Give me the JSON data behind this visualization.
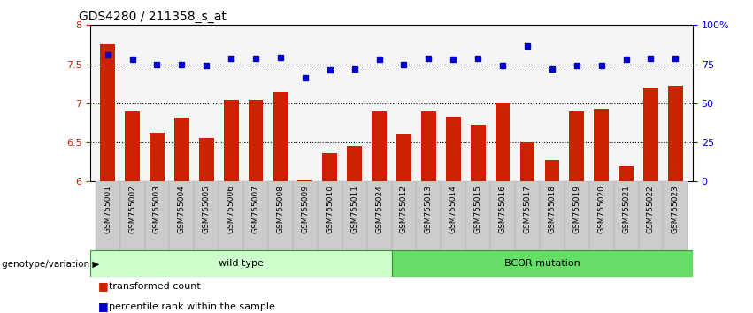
{
  "title": "GDS4280 / 211358_s_at",
  "categories": [
    "GSM755001",
    "GSM755002",
    "GSM755003",
    "GSM755004",
    "GSM755005",
    "GSM755006",
    "GSM755007",
    "GSM755008",
    "GSM755009",
    "GSM755010",
    "GSM755011",
    "GSM755024",
    "GSM755012",
    "GSM755013",
    "GSM755014",
    "GSM755015",
    "GSM755016",
    "GSM755017",
    "GSM755018",
    "GSM755019",
    "GSM755020",
    "GSM755021",
    "GSM755022",
    "GSM755023"
  ],
  "bar_values": [
    7.75,
    6.9,
    6.62,
    6.82,
    6.56,
    7.04,
    7.04,
    7.14,
    6.02,
    6.36,
    6.45,
    6.9,
    6.6,
    6.9,
    6.83,
    6.73,
    7.01,
    6.5,
    6.28,
    6.9,
    6.93,
    6.2,
    7.2,
    7.22
  ],
  "dot_values": [
    7.62,
    7.56,
    7.49,
    7.5,
    7.48,
    7.57,
    7.57,
    7.58,
    7.33,
    7.43,
    7.44,
    7.56,
    7.5,
    7.57,
    7.56,
    7.57,
    7.48,
    7.73,
    7.44,
    7.48,
    7.48,
    7.56,
    7.57,
    7.57
  ],
  "bar_color": "#cc2200",
  "dot_color": "#0000cc",
  "ylim_left": [
    6.0,
    8.0
  ],
  "ylim_right": [
    0,
    100
  ],
  "yticks_left": [
    6.0,
    6.5,
    7.0,
    7.5,
    8.0
  ],
  "ytick_labels_left": [
    "6",
    "6.5",
    "7",
    "7.5",
    "8"
  ],
  "yticks_right": [
    0,
    25,
    50,
    75,
    100
  ],
  "ytick_labels_right": [
    "0",
    "25",
    "50",
    "75",
    "100%"
  ],
  "grid_values": [
    6.5,
    7.0,
    7.5
  ],
  "n_wild_type": 12,
  "n_bcor": 12,
  "wild_type_label": "wild type",
  "bcor_label": "BCOR mutation",
  "genotype_label": "genotype/variation",
  "legend_bar": "transformed count",
  "legend_dot": "percentile rank within the sample",
  "background_color": "#ffffff",
  "bar_width": 0.6,
  "plot_bg": "#f5f5f5",
  "wt_color": "#ccffcc",
  "bcor_color": "#66dd66",
  "band_edge_color": "#339933"
}
